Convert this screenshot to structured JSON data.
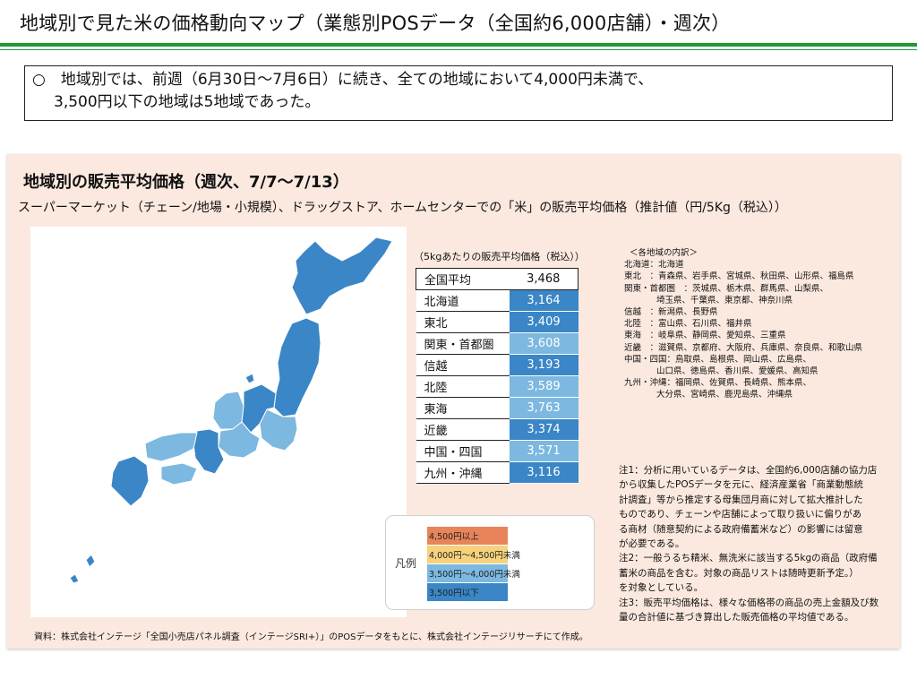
{
  "header": {
    "title": "地域別で見た米の価格動向マップ（業態別POSデータ（全国約6,000店舗）・週次）"
  },
  "summary": {
    "line1": "○　地域別では、前週（6月30日～7月6日）に続き、全ての地域において4,000円未満で、",
    "line2": "3,500円以下の地域は5地域であった。"
  },
  "section": {
    "title": "地域別の販売平均価格（週次、7/7～7/13）",
    "description": "スーパーマーケット（チェーン/地場・小規模）、ドラッグストア、ホームセンターでの「米」の販売平均価格（推計値（円/5Kg（税込））"
  },
  "chart_data": {
    "type": "table",
    "title": "地域別の販売平均価格（週次、7/7～7/13）",
    "table_caption": "（5kgあたりの販売平均価格（税込））",
    "unit": "円/5Kg（税込）",
    "average": {
      "label": "全国平均",
      "value": 3468,
      "display": "3,468"
    },
    "regions": [
      {
        "label": "北海道",
        "value": 3164,
        "display": "3,164",
        "color": "#3a86c6"
      },
      {
        "label": "東北",
        "value": 3409,
        "display": "3,409",
        "color": "#3a86c6"
      },
      {
        "label": "関東・首都圏",
        "value": 3608,
        "display": "3,608",
        "color": "#7cb8e0"
      },
      {
        "label": "信越",
        "value": 3193,
        "display": "3,193",
        "color": "#3a86c6"
      },
      {
        "label": "北陸",
        "value": 3589,
        "display": "3,589",
        "color": "#7cb8e0"
      },
      {
        "label": "東海",
        "value": 3763,
        "display": "3,763",
        "color": "#7cb8e0"
      },
      {
        "label": "近畿",
        "value": 3374,
        "display": "3,374",
        "color": "#3a86c6"
      },
      {
        "label": "中国・四国",
        "value": 3571,
        "display": "3,571",
        "color": "#7cb8e0"
      },
      {
        "label": "九州・沖縄",
        "value": 3116,
        "display": "3,116",
        "color": "#3a86c6"
      }
    ],
    "legend": {
      "title": "凡例",
      "items": [
        {
          "label": "4,500円以上",
          "color": "#e8845a"
        },
        {
          "label": "4,000円～4,500円未満",
          "color": "#f6d27c"
        },
        {
          "label": "3,500円～4,000円未満",
          "color": "#7cb8e0"
        },
        {
          "label": "3,500円以下",
          "color": "#3a86c6"
        }
      ]
    }
  },
  "breakdown": {
    "title": "＜各地域の内訳＞",
    "lines": [
      "北海道：北海道",
      "東北　：青森県、岩手県、宮城県、秋田県、山形県、福島県",
      "関東・首都圏　：茨城県、栃木県、群馬県、山梨県、",
      "埼玉県、千葉県、東京都、神奈川県",
      "信越　：新潟県、長野県",
      "北陸　：富山県、石川県、福井県",
      "東海　：岐阜県、静岡県、愛知県、三重県",
      "近畿　：滋賀県、京都府、大阪府、兵庫県、奈良県、和歌山県",
      "中国・四国：鳥取県、島根県、岡山県、広島県、",
      "山口県、徳島県、香川県、愛媛県、高知県",
      "九州・沖縄：福岡県、佐賀県、長崎県、熊本県、",
      "大分県、宮崎県、鹿児島県、沖縄県"
    ]
  },
  "notes": [
    "注1：分析に用いているデータは、全国約6,000店舗の協力店",
    "から収集したPOSデータを元に、経済産業省「商業動態統",
    "計調査」等から推定する母集団月商に対して拡大推計した",
    "ものであり、チェーンや店舗によって取り扱いに偏りがあ",
    "る商材（随意契約による政府備蓄米など）の影響には留意",
    "が必要である。",
    "注2：一般うるち精米、無洗米に該当する5kgの商品（政府備",
    "蓄米の商品を含む。対象の商品リストは随時更新予定。）",
    "を対象としている。",
    "注3：販売平均価格は、様々な価格帯の商品の売上金額及び数",
    "量の合計値に基づき算出した販売価格の平均値である。"
  ],
  "source": "資料：株式会社インテージ「全国小売店パネル調査（インテージSRI+）」のPOSデータをもとに、株式会社インテージリサーチにて作成。"
}
